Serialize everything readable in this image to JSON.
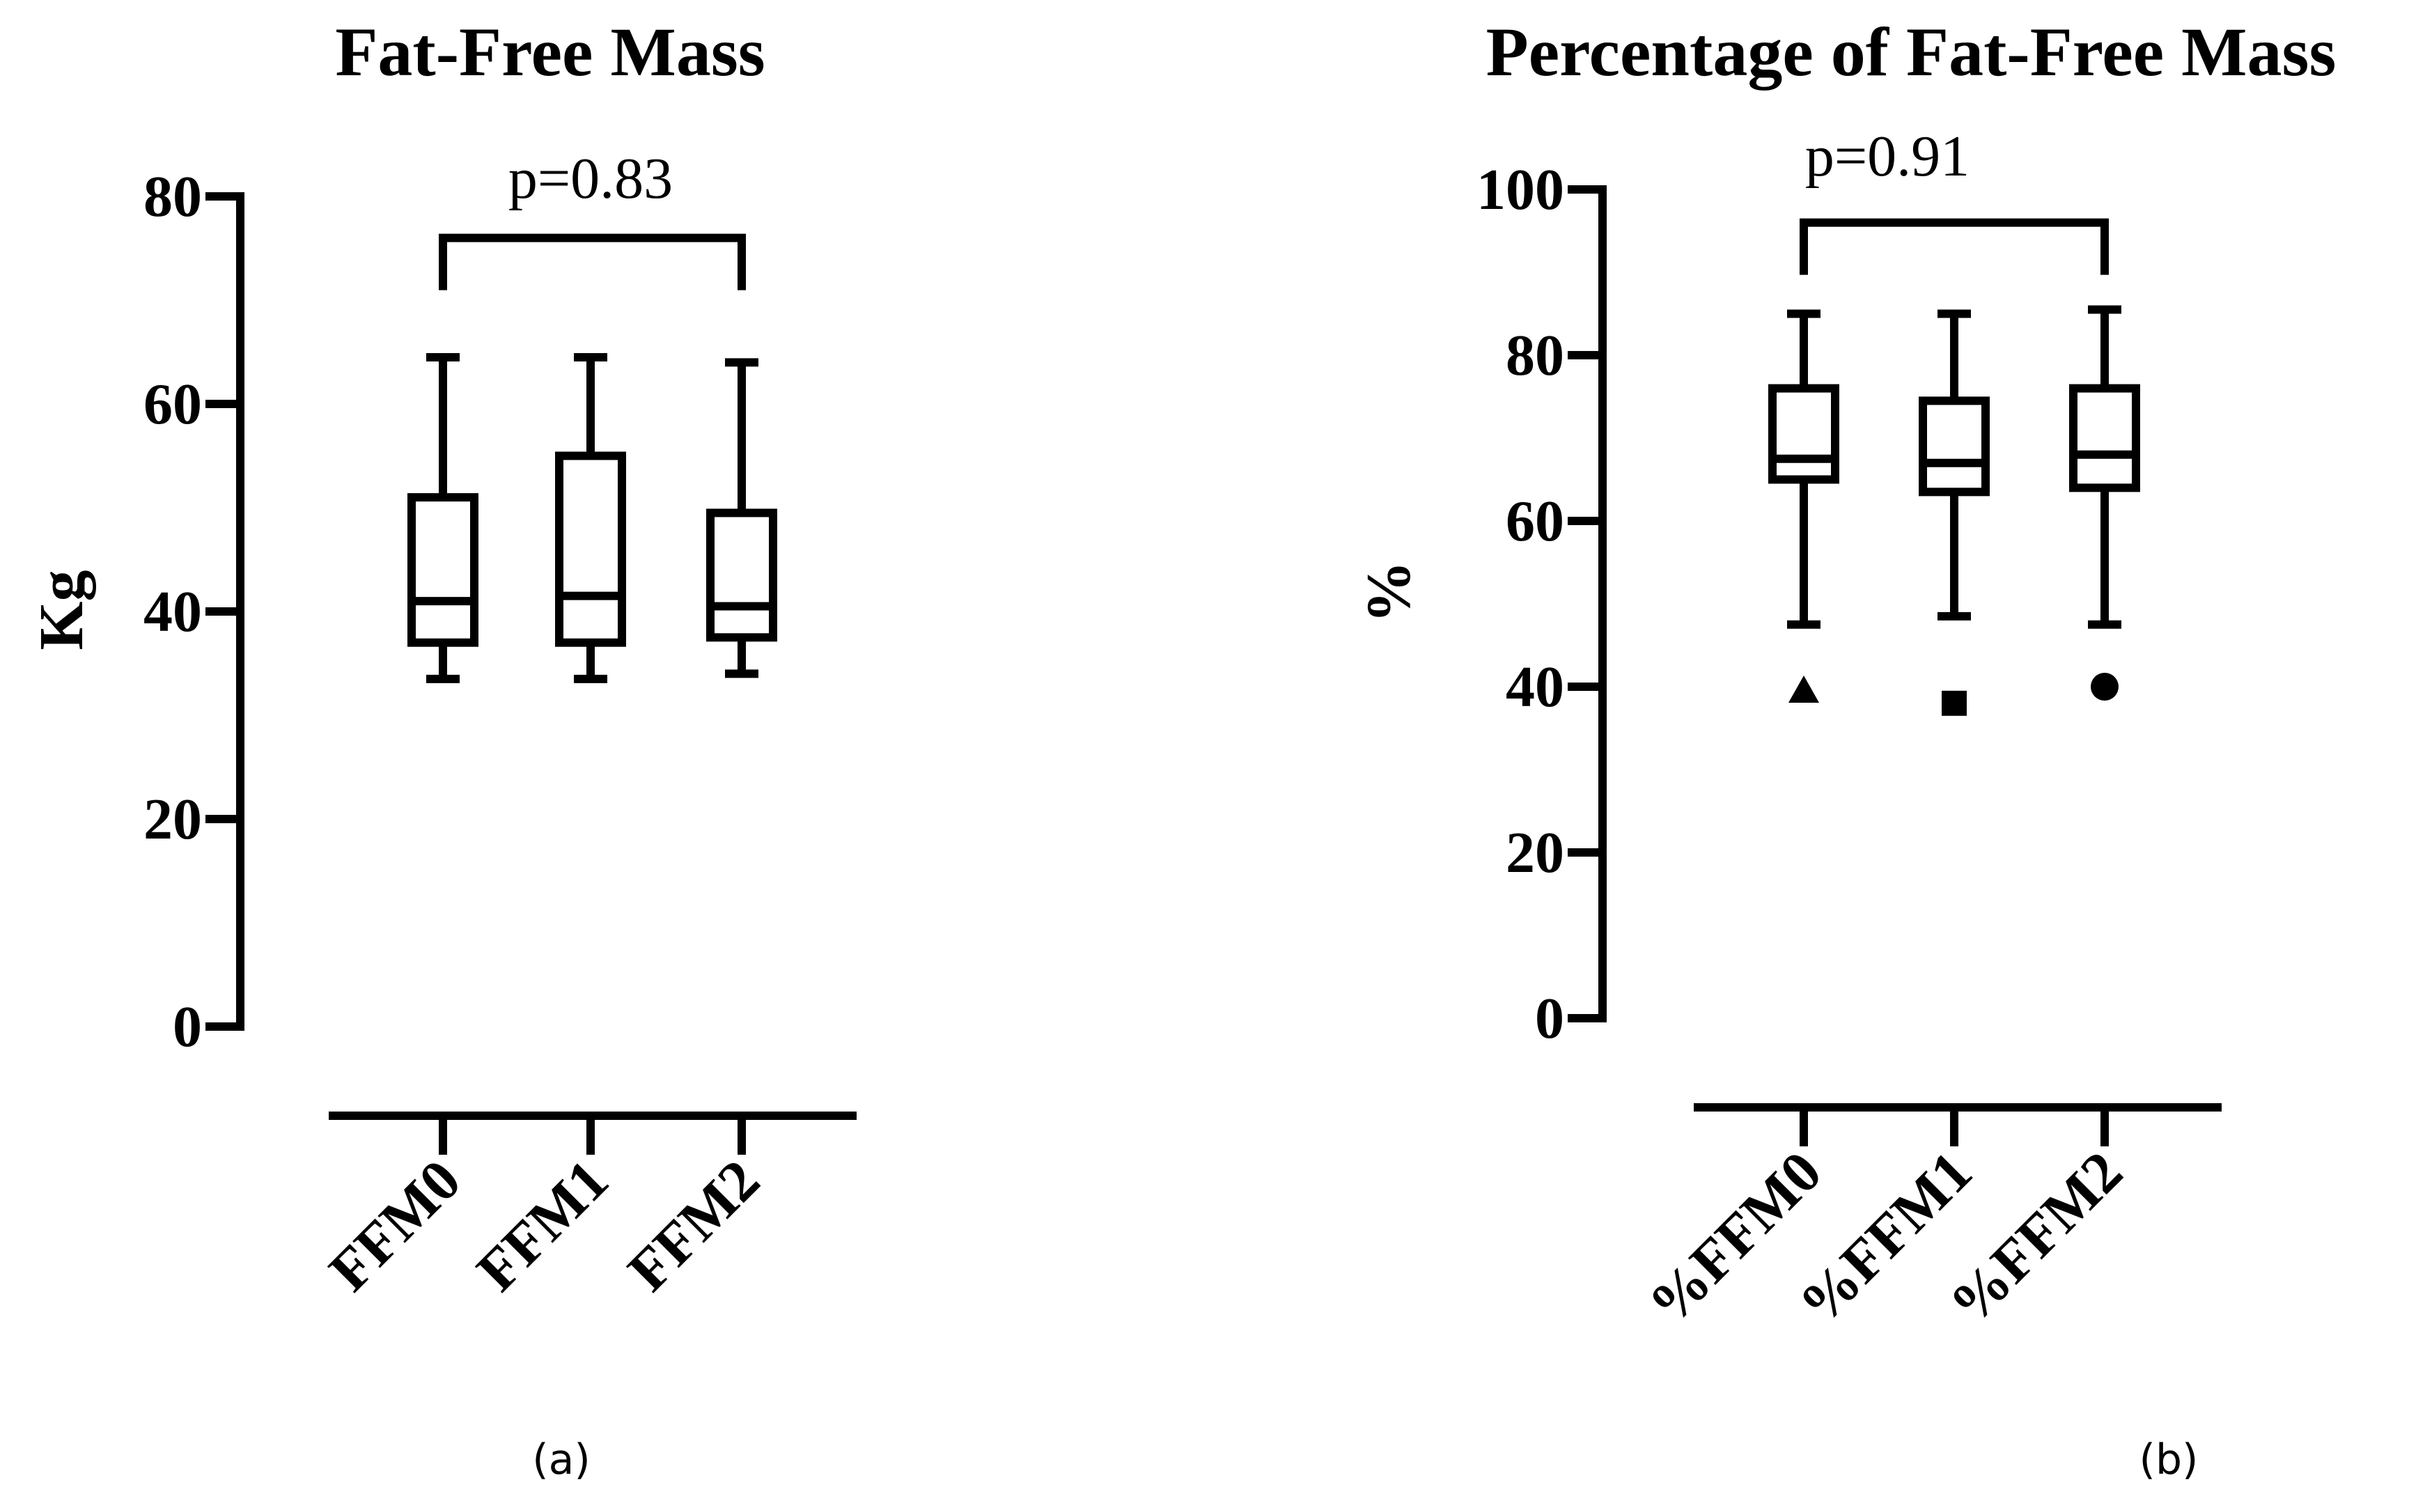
{
  "chart_data": [
    {
      "type": "box",
      "title": "Fat-Free Mass",
      "ylabel": "Kg",
      "xlabel": "",
      "ylim": [
        0,
        80
      ],
      "yticks": [
        0,
        20,
        40,
        60,
        80
      ],
      "categories": [
        "FFM0",
        "FFM1",
        "FFM2"
      ],
      "boxes": [
        {
          "name": "FFM0",
          "min": 33.5,
          "q1": 37,
          "median": 41,
          "q3": 51,
          "max": 64.5
        },
        {
          "name": "FFM1",
          "min": 33.5,
          "q1": 37,
          "median": 41.5,
          "q3": 55,
          "max": 64.5
        },
        {
          "name": "FFM2",
          "min": 34,
          "q1": 37.5,
          "median": 40.5,
          "q3": 49.5,
          "max": 64
        }
      ],
      "outliers": [],
      "comparison": {
        "from": "FFM0",
        "to": "FFM2",
        "label": "p=0.83",
        "y": 76
      },
      "panel_label": "(a)"
    },
    {
      "type": "box",
      "title": "Percentage of Fat-Free Mass",
      "ylabel": "%",
      "xlabel": "",
      "ylim": [
        0,
        100
      ],
      "yticks": [
        0,
        20,
        40,
        60,
        80,
        100
      ],
      "categories": [
        "%FFM0",
        "%FFM1",
        "%FFM2"
      ],
      "boxes": [
        {
          "name": "%FFM0",
          "min": 47.5,
          "q1": 65,
          "median": 67.5,
          "q3": 76,
          "max": 85
        },
        {
          "name": "%FFM1",
          "min": 48.5,
          "q1": 63.5,
          "median": 67,
          "q3": 74.5,
          "max": 85
        },
        {
          "name": "%FFM2",
          "min": 47.5,
          "q1": 64,
          "median": 68,
          "q3": 76,
          "max": 85.5
        }
      ],
      "outliers": [
        {
          "category": "%FFM0",
          "value": 39.5,
          "marker": "triangle"
        },
        {
          "category": "%FFM1",
          "value": 38,
          "marker": "square"
        },
        {
          "category": "%FFM2",
          "value": 40,
          "marker": "circle"
        }
      ],
      "comparison": {
        "from": "%FFM0",
        "to": "%FFM2",
        "label": "p=0.91",
        "y": 96
      },
      "panel_label": "(b)"
    }
  ]
}
